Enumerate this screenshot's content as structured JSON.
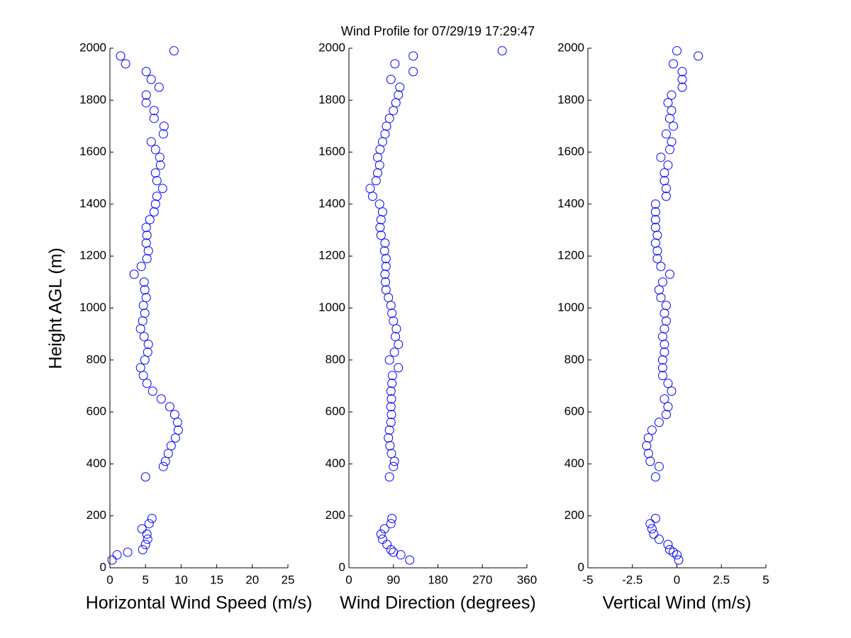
{
  "chart_data": [
    {
      "type": "scatter",
      "xlabel": "Horizontal Wind Speed (m/s)",
      "ylabel": "Height AGL (m)",
      "color": "#0000ff",
      "x": [
        0.3,
        1,
        2.5,
        4.6,
        5,
        5.3,
        5.2,
        4.5,
        5.5,
        5.9,
        5,
        7.5,
        7.8,
        8.2,
        8.6,
        9.2,
        9.6,
        9.5,
        9.1,
        8.4,
        7.2,
        6,
        5.2,
        4.7,
        4.3,
        4.9,
        5.3,
        5.4,
        4.8,
        4.3,
        4.6,
        4.9,
        4.7,
        5.1,
        4.9,
        4.8,
        3.4,
        4.4,
        5.2,
        5.4,
        5.1,
        5.2,
        5.1,
        5.6,
        6.2,
        6.4,
        6.6,
        7.4,
        6.6,
        6.4,
        7.1,
        7,
        6.4,
        5.8,
        7.5,
        7.6,
        6.2,
        6.2,
        5.1,
        5.1,
        6.9,
        5.8,
        5.1,
        2.2,
        1.5,
        9
      ],
      "y": [
        30,
        50,
        60,
        70,
        90,
        110,
        130,
        150,
        170,
        190,
        350,
        390,
        410,
        440,
        470,
        500,
        530,
        560,
        590,
        620,
        650,
        680,
        710,
        740,
        770,
        800,
        830,
        860,
        890,
        920,
        950,
        980,
        1010,
        1040,
        1070,
        1100,
        1130,
        1160,
        1190,
        1220,
        1250,
        1280,
        1310,
        1340,
        1370,
        1400,
        1430,
        1460,
        1490,
        1520,
        1550,
        1580,
        1610,
        1640,
        1670,
        1700,
        1730,
        1760,
        1790,
        1820,
        1850,
        1880,
        1910,
        1940,
        1970,
        1990
      ],
      "xlim": [
        0,
        25
      ],
      "xticks": [
        0,
        5,
        10,
        15,
        20,
        25
      ],
      "ylim": [
        0,
        2000
      ],
      "yticks": [
        0,
        200,
        400,
        600,
        800,
        1000,
        1200,
        1400,
        1600,
        1800,
        2000
      ]
    },
    {
      "type": "scatter",
      "title": "Wind Profile for  07/29/19 17:29:47",
      "xlabel": "Wind Direction (degrees)",
      "color": "#0000ff",
      "x": [
        123,
        105,
        90,
        85,
        77,
        68,
        65,
        72,
        85,
        87,
        82,
        90,
        92,
        86,
        83,
        80,
        82,
        85,
        86,
        85,
        86,
        85,
        87,
        88,
        100,
        82,
        92,
        100,
        94,
        96,
        90,
        87,
        85,
        80,
        75,
        74,
        73,
        75,
        75,
        72,
        73,
        65,
        63,
        65,
        68,
        62,
        48,
        43,
        55,
        58,
        62,
        58,
        63,
        68,
        73,
        76,
        82,
        90,
        95,
        100,
        103,
        85,
        130,
        93,
        130,
        310
      ],
      "y": [
        30,
        50,
        60,
        70,
        90,
        110,
        130,
        150,
        170,
        190,
        350,
        390,
        410,
        440,
        470,
        500,
        530,
        560,
        590,
        620,
        650,
        680,
        710,
        740,
        770,
        800,
        830,
        860,
        890,
        920,
        950,
        980,
        1010,
        1040,
        1070,
        1100,
        1130,
        1160,
        1190,
        1220,
        1250,
        1280,
        1310,
        1340,
        1370,
        1400,
        1430,
        1460,
        1490,
        1520,
        1550,
        1580,
        1610,
        1640,
        1670,
        1700,
        1730,
        1760,
        1790,
        1820,
        1850,
        1880,
        1910,
        1940,
        1970,
        1990
      ],
      "xlim": [
        0,
        360
      ],
      "xticks": [
        0,
        90,
        180,
        270,
        360
      ],
      "ylim": [
        0,
        2000
      ],
      "yticks": [
        0,
        200,
        400,
        600,
        800,
        1000,
        1200,
        1400,
        1600,
        1800,
        2000
      ]
    },
    {
      "type": "scatter",
      "xlabel": "Vertical Wind (m/s)",
      "color": "#0000ff",
      "x": [
        0.1,
        0,
        -0.2,
        -0.4,
        -0.5,
        -1,
        -1.3,
        -1.4,
        -1.5,
        -1.2,
        -1.2,
        -1,
        -1.5,
        -1.6,
        -1.7,
        -1.6,
        -1.4,
        -1,
        -0.6,
        -0.5,
        -0.7,
        -0.3,
        -0.5,
        -0.8,
        -0.8,
        -0.8,
        -0.7,
        -0.7,
        -0.8,
        -0.7,
        -0.6,
        -0.7,
        -0.6,
        -0.9,
        -1,
        -0.8,
        -0.4,
        -0.9,
        -1.1,
        -1.1,
        -1.2,
        -1.1,
        -1.2,
        -1.2,
        -1.2,
        -1.2,
        -0.6,
        -0.6,
        -0.7,
        -0.7,
        -0.5,
        -0.9,
        -0.4,
        -0.3,
        -0.6,
        -0.2,
        -0.4,
        -0.3,
        -0.5,
        -0.3,
        0.3,
        0.3,
        0.3,
        -0.2,
        1.2,
        0
      ],
      "y": [
        30,
        50,
        60,
        70,
        90,
        110,
        130,
        150,
        170,
        190,
        350,
        390,
        410,
        440,
        470,
        500,
        530,
        560,
        590,
        620,
        650,
        680,
        710,
        740,
        770,
        800,
        830,
        860,
        890,
        920,
        950,
        980,
        1010,
        1040,
        1070,
        1100,
        1130,
        1160,
        1190,
        1220,
        1250,
        1280,
        1310,
        1340,
        1370,
        1400,
        1430,
        1460,
        1490,
        1520,
        1550,
        1580,
        1610,
        1640,
        1670,
        1700,
        1730,
        1760,
        1790,
        1820,
        1850,
        1880,
        1910,
        1940,
        1970,
        1990
      ],
      "xlim": [
        -5,
        5
      ],
      "xticks": [
        -5,
        -2.5,
        0,
        2.5,
        5
      ],
      "ylim": [
        0,
        2000
      ],
      "yticks": [
        0,
        200,
        400,
        600,
        800,
        1000,
        1200,
        1400,
        1600,
        1800,
        2000
      ]
    }
  ]
}
